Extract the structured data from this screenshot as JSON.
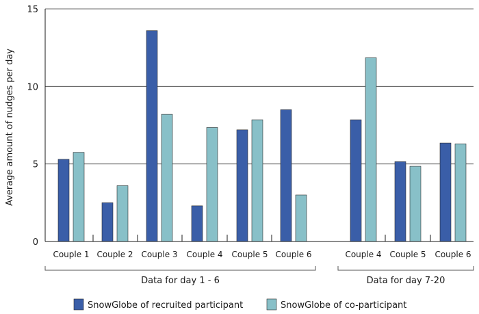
{
  "chart_data": {
    "type": "bar",
    "title": "",
    "xlabel": "",
    "ylabel": "Average amount of nudges per day",
    "ylim": [
      0,
      15
    ],
    "yticks": [
      0,
      5,
      10,
      15
    ],
    "grid": true,
    "legend_position": "bottom",
    "categories": [
      "Couple 1",
      "Couple 2",
      "Couple 3",
      "Couple 4",
      "Couple 5",
      "Couple 6",
      "Couple 4",
      "Couple 5",
      "Couple 6"
    ],
    "groups": [
      {
        "label": "Data for day 1 - 6",
        "categories": [
          "Couple 1",
          "Couple 2",
          "Couple 3",
          "Couple 4",
          "Couple 5",
          "Couple 6"
        ]
      },
      {
        "label": "Data for day 7-20",
        "categories": [
          "Couple 4",
          "Couple 5",
          "Couple 6"
        ]
      }
    ],
    "series": [
      {
        "name": "SnowGlobe of recruited participant",
        "color": "#3a5ea8",
        "values": [
          5.3,
          2.5,
          13.6,
          2.3,
          7.2,
          8.5,
          7.85,
          5.15,
          6.35
        ]
      },
      {
        "name": "SnowGlobe of co-participant",
        "color": "#88c0c8",
        "values": [
          5.75,
          3.6,
          8.2,
          7.35,
          7.85,
          3.0,
          11.85,
          4.85,
          6.3
        ]
      }
    ]
  }
}
